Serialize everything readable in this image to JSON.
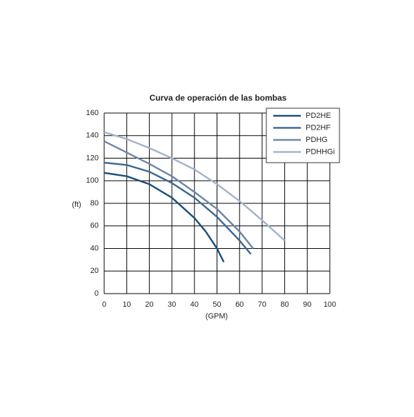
{
  "chart_data": {
    "type": "line",
    "title": "Curva de operación de las bombas",
    "x_label": "(GPM)",
    "y_label": "(ft)",
    "xlim": [
      0,
      100
    ],
    "xticks": [
      0,
      10,
      20,
      30,
      40,
      50,
      60,
      70,
      80,
      90,
      100
    ],
    "ylim": [
      0,
      160
    ],
    "yticks": [
      0,
      20,
      40,
      60,
      80,
      100,
      120,
      140,
      160
    ],
    "grid": true,
    "legend": "upper right",
    "series": [
      {
        "name": "PD2HE",
        "color": "#1c4f7a",
        "x": [
          0,
          10,
          20,
          30,
          40,
          45,
          50,
          53
        ],
        "values": [
          107,
          104,
          97,
          85,
          67,
          55,
          40,
          28
        ]
      },
      {
        "name": "PD2HF",
        "color": "#3e6990",
        "x": [
          0,
          10,
          20,
          30,
          40,
          50,
          60,
          65
        ],
        "values": [
          116,
          114,
          108,
          98,
          85,
          68,
          47,
          35
        ]
      },
      {
        "name": "PDHG",
        "color": "#6d85aa",
        "x": [
          0,
          10,
          20,
          30,
          40,
          50,
          60,
          66
        ],
        "values": [
          135,
          125,
          115,
          104,
          90,
          75,
          55,
          40
        ]
      },
      {
        "name": "PDHHGi",
        "color": "#a4b3cd",
        "x": [
          0,
          10,
          20,
          30,
          40,
          50,
          60,
          70,
          80
        ],
        "values": [
          143,
          137,
          129,
          120,
          110,
          97,
          82,
          65,
          47
        ]
      }
    ]
  }
}
